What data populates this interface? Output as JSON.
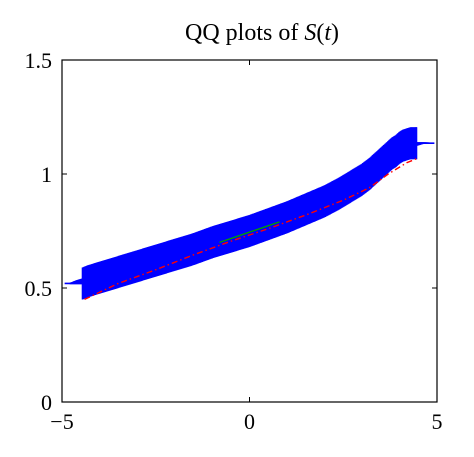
{
  "chart_data": {
    "type": "scatter",
    "title": "QQ plots of ",
    "title_var": "S",
    "title_arg": "(",
    "title_t": "t",
    "title_close": ")",
    "xlabel": "",
    "ylabel": "",
    "xlim": [
      -5,
      5
    ],
    "ylim": [
      0,
      1.5
    ],
    "xticks": [
      -5,
      0,
      5
    ],
    "xtick_labels": [
      "−5",
      "0",
      "5"
    ],
    "yticks": [
      0,
      0.5,
      1,
      1.5
    ],
    "ytick_labels": [
      "0",
      "0.5",
      "1",
      "1.5"
    ],
    "grid": false,
    "series": [
      {
        "marker": "plus",
        "color": "#0000ff",
        "x": [
          -4.45,
          -4.3,
          -4.2,
          -4.1,
          -4.0,
          -3.9,
          -3.8,
          -3.6,
          -3.4,
          -3.2,
          -3.0,
          -2.7,
          -2.4,
          -2.0,
          -1.5,
          -1.0,
          -0.5,
          0.0,
          0.5,
          1.0,
          1.5,
          2.0,
          2.4,
          2.7,
          3.0,
          3.2,
          3.4,
          3.6,
          3.7,
          3.8,
          3.9,
          4.0,
          4.1,
          4.2,
          4.3,
          4.45
        ],
        "y": [
          0.52,
          0.53,
          0.535,
          0.54,
          0.545,
          0.55,
          0.555,
          0.565,
          0.575,
          0.585,
          0.595,
          0.61,
          0.625,
          0.645,
          0.67,
          0.7,
          0.725,
          0.75,
          0.78,
          0.81,
          0.845,
          0.88,
          0.915,
          0.945,
          0.975,
          1.0,
          1.03,
          1.06,
          1.075,
          1.09,
          1.1,
          1.115,
          1.125,
          1.13,
          1.135,
          1.135
        ]
      },
      {
        "style": "dashdot",
        "color": "#ff0000",
        "x": [
          -4.4,
          -3.5,
          -2.5,
          -1.5,
          -0.5,
          0.5,
          1.5,
          2.5,
          3.2,
          3.7,
          4.2,
          4.5
        ],
        "y": [
          0.45,
          0.52,
          0.58,
          0.645,
          0.705,
          0.76,
          0.82,
          0.885,
          0.94,
          1.0,
          1.05,
          1.07
        ]
      },
      {
        "style": "solid",
        "color": "#00a000",
        "x": [
          -0.8,
          0.8
        ],
        "y": [
          0.7,
          0.79
        ]
      }
    ]
  }
}
